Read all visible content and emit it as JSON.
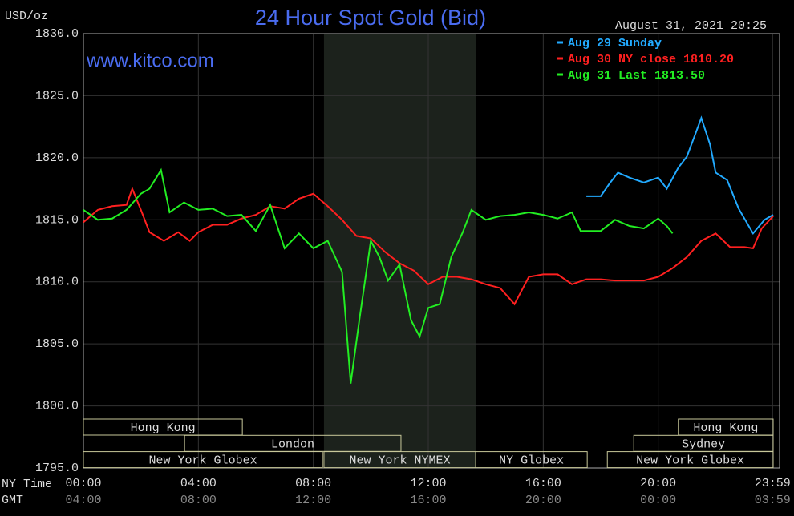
{
  "chart_data": {
    "type": "line",
    "title": "24 Hour Spot Gold (Bid)",
    "y_label": "USD/oz",
    "watermark": "www.kitco.com",
    "timestamp": "August 31, 2021 20:25",
    "x_axis_labels": [
      "NY Time",
      "GMT"
    ],
    "xlim": [
      0,
      24
    ],
    "ylim": [
      1795,
      1830
    ],
    "xticks": [
      {
        "value": 0,
        "label": "00:00"
      },
      {
        "value": 4,
        "label": "04:00"
      },
      {
        "value": 8,
        "label": "08:00"
      },
      {
        "value": 12,
        "label": "12:00"
      },
      {
        "value": 16,
        "label": "16:00"
      },
      {
        "value": 20,
        "label": "20:00"
      },
      {
        "value": 23.98,
        "label": "23:59"
      }
    ],
    "xticks_gmt": [
      {
        "value": 0,
        "label": "04:00"
      },
      {
        "value": 4,
        "label": "08:00"
      },
      {
        "value": 8,
        "label": "12:00"
      },
      {
        "value": 12,
        "label": "16:00"
      },
      {
        "value": 16,
        "label": "20:00"
      },
      {
        "value": 20,
        "label": "00:00"
      },
      {
        "value": 23.98,
        "label": "03:59"
      }
    ],
    "yticks": [
      {
        "value": 1795,
        "label": "1795.0"
      },
      {
        "value": 1800,
        "label": "1800.0"
      },
      {
        "value": 1805,
        "label": "1805.0"
      },
      {
        "value": 1810,
        "label": "1810.0"
      },
      {
        "value": 1815,
        "label": "1815.0"
      },
      {
        "value": 1820,
        "label": "1820.0"
      },
      {
        "value": 1825,
        "label": "1825.0"
      },
      {
        "value": 1830,
        "label": "1830.0"
      }
    ],
    "grid": true,
    "shaded": [
      8.37,
      13.65
    ],
    "sessions": [
      {
        "label": "Hong Kong",
        "start": 0,
        "end": 5.53,
        "row": 0
      },
      {
        "label": "Hong Kong",
        "start": 20.7,
        "end": 24,
        "row": 0
      },
      {
        "label": "London",
        "start": 3.52,
        "end": 11.05,
        "row": 1
      },
      {
        "label": "Sydney",
        "start": 19.15,
        "end": 24,
        "row": 1
      },
      {
        "label": "New York Globex",
        "start": 0,
        "end": 8.32,
        "row": 2
      },
      {
        "label": "New York NYMEX",
        "start": 8.37,
        "end": 13.65,
        "row": 2
      },
      {
        "label": "NY Globex",
        "start": 13.65,
        "end": 17.53,
        "row": 2
      },
      {
        "label": "New York Globex",
        "start": 18.23,
        "end": 24,
        "row": 2
      }
    ],
    "series": [
      {
        "name": "Aug 29 Sunday",
        "color": "#22aaff",
        "x": [
          17.5,
          18,
          18.3,
          18.6,
          19,
          19.5,
          20,
          20.3,
          20.7,
          21,
          21.5,
          21.8,
          22,
          22.4,
          22.8,
          23.3,
          23.7,
          24
        ],
        "values": [
          1816.9,
          1816.9,
          1817.9,
          1818.8,
          1818.4,
          1818.0,
          1818.4,
          1817.5,
          1819.2,
          1820.1,
          1823.2,
          1821.1,
          1818.8,
          1818.2,
          1815.9,
          1813.9,
          1815.0,
          1815.4
        ]
      },
      {
        "name": "Aug 30 NY close 1810.20",
        "color": "#ff2020",
        "x": [
          0,
          0.5,
          1,
          1.5,
          1.7,
          2,
          2.3,
          2.8,
          3.3,
          3.7,
          4,
          4.5,
          5,
          5.5,
          6,
          6.5,
          7,
          7.5,
          8,
          8.5,
          9,
          9.5,
          10,
          10.5,
          11,
          11.5,
          12,
          12.5,
          13,
          13.5,
          14,
          14.5,
          15,
          15.5,
          16,
          16.5,
          17,
          17.5,
          18,
          18.5,
          19,
          19.5,
          20,
          20.5,
          21,
          21.5,
          22,
          22.5,
          23,
          23.3,
          23.6,
          24
        ],
        "values": [
          1814.8,
          1815.8,
          1816.1,
          1816.2,
          1817.5,
          1815.8,
          1814.0,
          1813.3,
          1814.0,
          1813.3,
          1814.0,
          1814.6,
          1814.6,
          1815.1,
          1815.4,
          1816.1,
          1815.9,
          1816.7,
          1817.1,
          1816.1,
          1815.0,
          1813.7,
          1813.5,
          1812.4,
          1811.5,
          1810.9,
          1809.8,
          1810.4,
          1810.4,
          1810.2,
          1809.8,
          1809.5,
          1808.2,
          1810.4,
          1810.6,
          1810.6,
          1809.8,
          1810.2,
          1810.2,
          1810.1,
          1810.1,
          1810.1,
          1810.4,
          1811.1,
          1812.0,
          1813.3,
          1813.9,
          1812.8,
          1812.8,
          1812.7,
          1814.3,
          1815.3
        ]
      },
      {
        "name": "Aug 31 Last 1813.50",
        "color": "#22ee22",
        "x": [
          0,
          0.5,
          1,
          1.5,
          2,
          2.3,
          2.7,
          3,
          3.5,
          4,
          4.5,
          5,
          5.5,
          6,
          6.5,
          7,
          7.5,
          8,
          8.5,
          9,
          9.3,
          9.6,
          10,
          10.3,
          10.6,
          11,
          11.4,
          11.7,
          12,
          12.4,
          12.8,
          13.2,
          13.5,
          14,
          14.5,
          15,
          15.5,
          16,
          16.5,
          17,
          17.3,
          18,
          18.5,
          19,
          19.5,
          20,
          20.3,
          20.5
        ],
        "values": [
          1815.8,
          1815.0,
          1815.1,
          1815.8,
          1817.1,
          1817.5,
          1819.0,
          1815.6,
          1816.4,
          1815.8,
          1815.9,
          1815.3,
          1815.4,
          1814.1,
          1816.2,
          1812.7,
          1813.9,
          1812.7,
          1813.3,
          1810.8,
          1801.8,
          1806.9,
          1813.3,
          1812.0,
          1810.1,
          1811.4,
          1806.9,
          1805.6,
          1807.9,
          1808.2,
          1812.0,
          1814.0,
          1815.8,
          1815.0,
          1815.3,
          1815.4,
          1815.6,
          1815.4,
          1815.1,
          1815.6,
          1814.1,
          1814.1,
          1815.0,
          1814.5,
          1814.3,
          1815.1,
          1814.5,
          1813.9
        ]
      }
    ]
  }
}
